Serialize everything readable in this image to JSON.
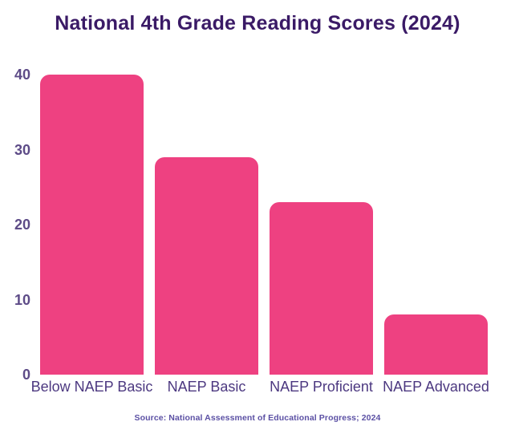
{
  "chart_data": {
    "type": "bar",
    "title": "National 4th Grade Reading Scores (2024)",
    "categories": [
      "Below NAEP Basic",
      "NAEP Basic",
      "NAEP Proficient",
      "NAEP Advanced"
    ],
    "values": [
      40,
      29,
      23,
      8
    ],
    "y_ticks": [
      0,
      10,
      20,
      30,
      40
    ],
    "ylim": [
      0,
      40
    ],
    "xlabel": "",
    "ylabel": "",
    "grid": false,
    "legend": false,
    "source": "Source: National Assessment of Educational Progress; 2024"
  },
  "colors": {
    "background": "#ffffff",
    "bar": "#EE4181",
    "title": "#3A1A66",
    "y_tick_label": "#5D4B87",
    "x_tick_label": "#4C3880",
    "source_text": "#5B50A4"
  }
}
